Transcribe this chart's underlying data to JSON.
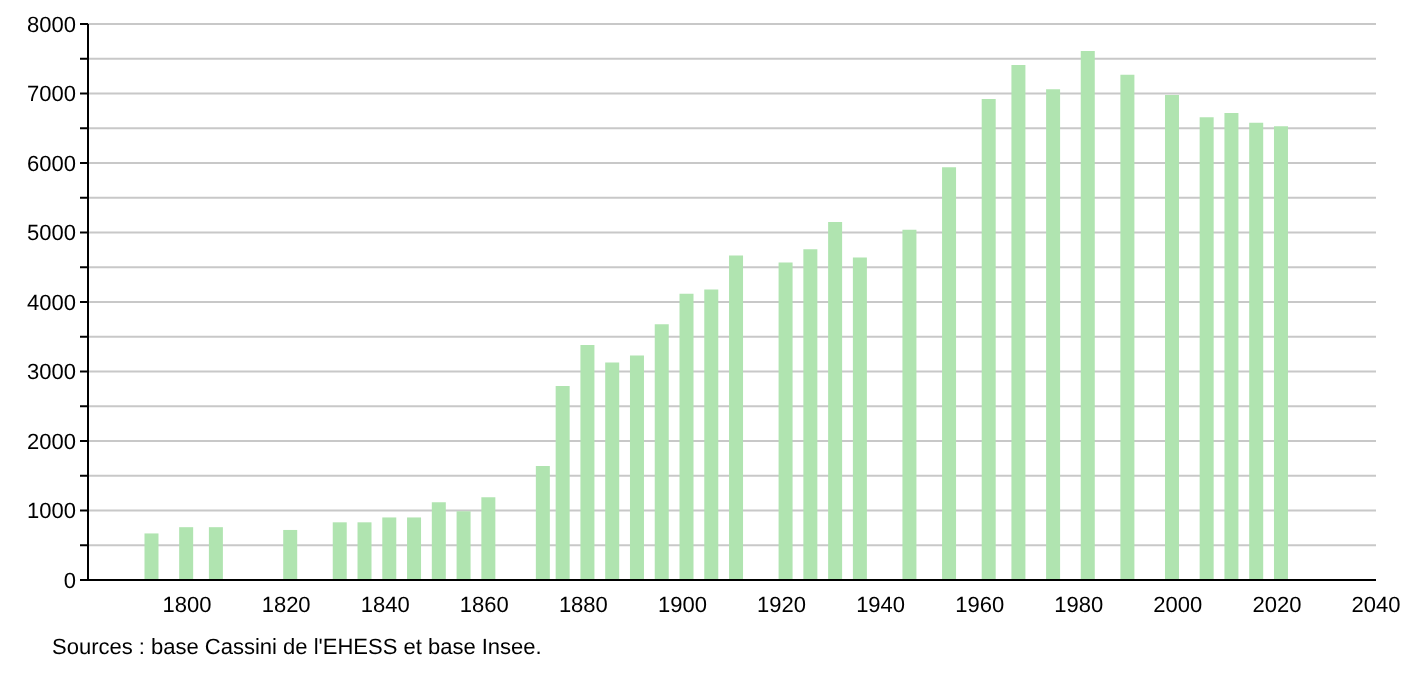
{
  "chart_data": {
    "type": "bar",
    "x": [
      1793,
      1800,
      1806,
      1821,
      1831,
      1836,
      1841,
      1846,
      1851,
      1856,
      1861,
      1872,
      1876,
      1881,
      1886,
      1891,
      1896,
      1901,
      1906,
      1911,
      1921,
      1926,
      1931,
      1936,
      1946,
      1954,
      1962,
      1968,
      1975,
      1982,
      1990,
      1999,
      2006,
      2011,
      2016,
      2021
    ],
    "values": [
      670,
      760,
      760,
      720,
      830,
      830,
      900,
      900,
      1120,
      990,
      1190,
      1640,
      2790,
      3380,
      3130,
      3230,
      3680,
      4120,
      4180,
      4670,
      4570,
      4760,
      5150,
      4640,
      5040,
      5940,
      6920,
      7410,
      7060,
      7610,
      7270,
      6980,
      6660,
      6720,
      6580,
      6530
    ],
    "color": "#b0e4b0",
    "xlim": [
      1780,
      2040
    ],
    "xticks": [
      1800,
      1820,
      1840,
      1860,
      1880,
      1900,
      1920,
      1940,
      1960,
      1980,
      2000,
      2020,
      2040
    ],
    "ylim": [
      0,
      8000
    ],
    "yticks": [
      0,
      {
        "value": 500,
        "label": null
      },
      1000,
      {
        "value": 1500,
        "label": null
      },
      2000,
      {
        "value": 2500,
        "label": null
      },
      3000,
      {
        "value": 3500,
        "label": null
      },
      4000,
      {
        "value": 4500,
        "label": null
      },
      5000,
      {
        "value": 5500,
        "label": null
      },
      6000,
      {
        "value": 6500,
        "label": null
      },
      7000,
      {
        "value": 7500,
        "label": null
      },
      8000
    ],
    "grid": "y",
    "annotations": [
      "Sources : base Cassini de l'EHESS et base Insee."
    ]
  }
}
